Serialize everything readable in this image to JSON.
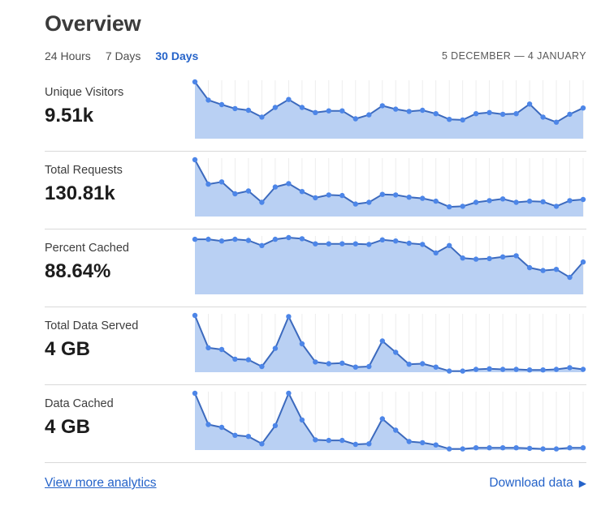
{
  "header": {
    "title": "Overview"
  },
  "tabs": [
    {
      "label": "24 Hours",
      "active": false
    },
    {
      "label": "7 Days",
      "active": false
    },
    {
      "label": "30 Days",
      "active": true
    }
  ],
  "date_range": "5 DECEMBER — 4 JANUARY",
  "metrics": [
    {
      "label": "Unique Visitors",
      "value": "9.51k"
    },
    {
      "label": "Total Requests",
      "value": "130.81k"
    },
    {
      "label": "Percent Cached",
      "value": "88.64%"
    },
    {
      "label": "Total Data Served",
      "value": "4 GB"
    },
    {
      "label": "Data Cached",
      "value": "4 GB"
    }
  ],
  "chart_data": [
    {
      "type": "area",
      "title": "Unique Visitors",
      "summary_value": "9.51k",
      "period": "30 Days",
      "legend": "none",
      "axis_labels": "none (sparkline)",
      "grid": "vertical-only",
      "values_normalized": [
        1.0,
        0.68,
        0.6,
        0.53,
        0.5,
        0.38,
        0.55,
        0.69,
        0.55,
        0.46,
        0.49,
        0.49,
        0.35,
        0.42,
        0.58,
        0.52,
        0.48,
        0.5,
        0.44,
        0.34,
        0.33,
        0.44,
        0.46,
        0.43,
        0.44,
        0.61,
        0.38,
        0.29,
        0.43,
        0.54
      ]
    },
    {
      "type": "area",
      "title": "Total Requests",
      "summary_value": "130.81k",
      "period": "30 Days",
      "legend": "none",
      "axis_labels": "none (sparkline)",
      "grid": "vertical-only",
      "values_normalized": [
        1.0,
        0.57,
        0.61,
        0.4,
        0.45,
        0.25,
        0.52,
        0.58,
        0.44,
        0.33,
        0.38,
        0.37,
        0.22,
        0.25,
        0.39,
        0.38,
        0.34,
        0.32,
        0.27,
        0.17,
        0.18,
        0.25,
        0.28,
        0.31,
        0.25,
        0.27,
        0.26,
        0.18,
        0.28,
        0.3
      ]
    },
    {
      "type": "area",
      "title": "Percent Cached",
      "summary_value": "88.64%",
      "period": "30 Days",
      "legend": "none",
      "axis_labels": "none (sparkline)",
      "grid": "vertical-only",
      "values_normalized": [
        0.97,
        0.97,
        0.94,
        0.97,
        0.95,
        0.86,
        0.97,
        1.0,
        0.98,
        0.89,
        0.89,
        0.89,
        0.89,
        0.88,
        0.96,
        0.94,
        0.9,
        0.88,
        0.73,
        0.86,
        0.64,
        0.62,
        0.63,
        0.66,
        0.68,
        0.47,
        0.42,
        0.44,
        0.3,
        0.57
      ]
    },
    {
      "type": "area",
      "title": "Total Data Served",
      "summary_value": "4 GB",
      "period": "30 Days",
      "legend": "none",
      "axis_labels": "none (sparkline)",
      "grid": "vertical-only",
      "values_normalized": [
        1.0,
        0.43,
        0.4,
        0.23,
        0.22,
        0.1,
        0.42,
        0.98,
        0.5,
        0.18,
        0.15,
        0.16,
        0.09,
        0.1,
        0.55,
        0.35,
        0.14,
        0.15,
        0.09,
        0.02,
        0.02,
        0.05,
        0.06,
        0.05,
        0.05,
        0.04,
        0.04,
        0.05,
        0.08,
        0.05
      ]
    },
    {
      "type": "area",
      "title": "Data Cached",
      "summary_value": "4 GB",
      "period": "30 Days",
      "legend": "none",
      "axis_labels": "none (sparkline)",
      "grid": "vertical-only",
      "values_normalized": [
        1.0,
        0.45,
        0.4,
        0.26,
        0.24,
        0.11,
        0.43,
        1.0,
        0.53,
        0.18,
        0.17,
        0.17,
        0.1,
        0.11,
        0.55,
        0.35,
        0.15,
        0.13,
        0.09,
        0.02,
        0.02,
        0.04,
        0.04,
        0.04,
        0.04,
        0.03,
        0.02,
        0.02,
        0.04,
        0.04
      ]
    }
  ],
  "footer": {
    "view_more_label": "View more analytics",
    "download_label": "Download data",
    "download_arrow_icon": "▶"
  },
  "colors": {
    "accent_blue": "#2563c9",
    "spark_fill": "#b9d0f3",
    "spark_line": "#3c6abe",
    "spark_dot": "#4d86e8",
    "grid_line": "#ededed",
    "divider": "#d9d9d9"
  }
}
